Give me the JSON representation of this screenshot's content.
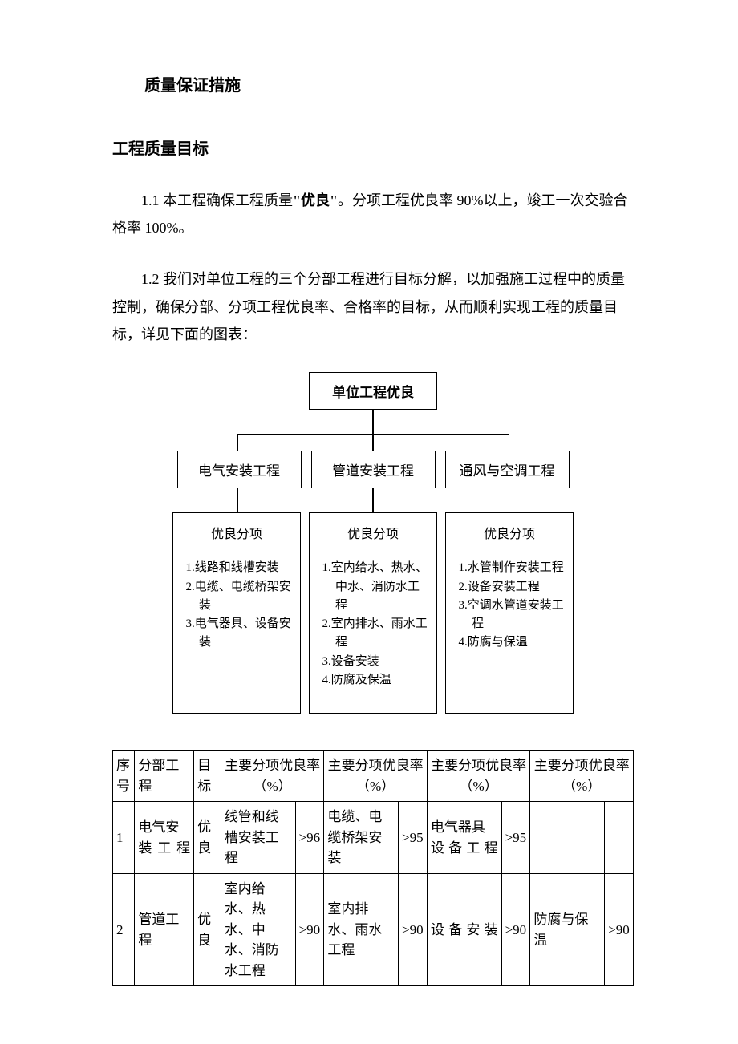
{
  "title": "质量保证措施",
  "subtitle": "工程质量目标",
  "para1_pre": "1.1 本工程确保工程质量",
  "para1_quote": "\"优良\"",
  "para1_post": "。分项工程优良率 90%以上，竣工一次交验合格率 100%。",
  "para2": "1.2 我们对单位工程的三个分部工程进行目标分解，以加强施工过程中的质量控制，确保分部、分项工程优良率、合格率的目标，从而顺利实现工程的质量目标，详见下面的图表：",
  "orgchart": {
    "top": "单位工程优良",
    "mid": [
      "电气安装工程",
      "管道安装工程",
      "通风与空调工程"
    ],
    "sub_label": "优良分项",
    "bottom": [
      [
        "1.线路和线槽安装",
        "2.电缆、电缆桥架安装",
        "3.电气器具、设备安装"
      ],
      [
        "1.室内给水、热水、中水、消防水工程",
        "2.室内排水、雨水工程",
        "3.设备安装",
        "4.防腐及保温"
      ],
      [
        "1.水管制作安装工程",
        "2.设备安装工程",
        "3.空调水管道安装工程",
        "4.防腐与保温"
      ]
    ]
  },
  "table": {
    "header": {
      "seq": "序号",
      "dept": "分部工程",
      "goal": "目标",
      "colpair": "主要分项优良率（%）",
      "colpair2": "主要分项优良率  （%）"
    },
    "rows": [
      {
        "seq": "1",
        "dept": "电气安装工程",
        "goal": "优良",
        "pairs": [
          {
            "name": "线管和线槽安装工程",
            "rate": ">96"
          },
          {
            "name": "电缆、电缆桥架安装",
            "rate": ">95"
          },
          {
            "name": "电气器具设备工程",
            "rate": ">95"
          },
          {
            "name": "",
            "rate": ""
          }
        ]
      },
      {
        "seq": "2",
        "dept": "管道工程",
        "goal": "优良",
        "pairs": [
          {
            "name": "室内给水、热水、中水、消防水工程",
            "rate": ">90"
          },
          {
            "name": "室内排水、雨水工程",
            "rate": ">90"
          },
          {
            "name": "设备安装",
            "rate": ">90"
          },
          {
            "name": "防腐与保温",
            "rate": ">90"
          }
        ]
      }
    ]
  }
}
